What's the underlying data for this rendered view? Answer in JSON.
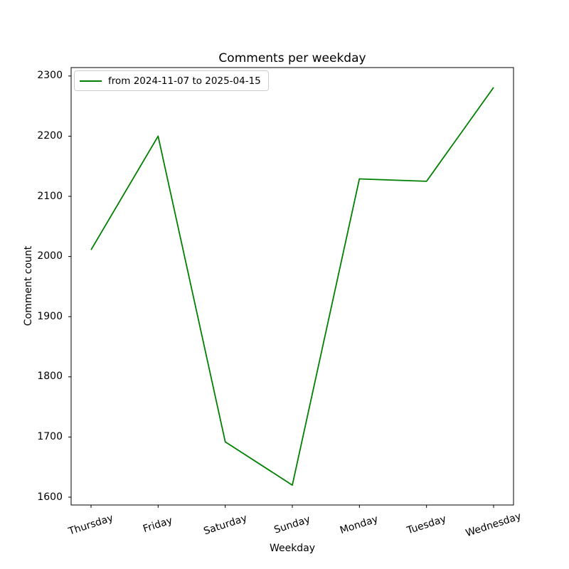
{
  "chart_data": {
    "type": "line",
    "title": "Comments per weekday",
    "xlabel": "Weekday",
    "ylabel": "Comment count",
    "categories": [
      "Thursday",
      "Friday",
      "Saturday",
      "Sunday",
      "Monday",
      "Tuesday",
      "Wednesday"
    ],
    "series": [
      {
        "name": "from 2024-11-07 to 2025-04-15",
        "values": [
          2011,
          2200,
          1692,
          1620,
          2129,
          2125,
          2281
        ],
        "color": "#008000"
      }
    ],
    "yticks": [
      1600,
      1700,
      1800,
      1900,
      2000,
      2100,
      2200,
      2300
    ],
    "ylim": [
      1587,
      2314
    ],
    "grid": false,
    "legend_position": "upper left",
    "x_tick_rotation": 18,
    "colors": {
      "frame": "#000000",
      "legend_border": "#cccccc",
      "text": "#000000",
      "background": "#ffffff"
    }
  }
}
